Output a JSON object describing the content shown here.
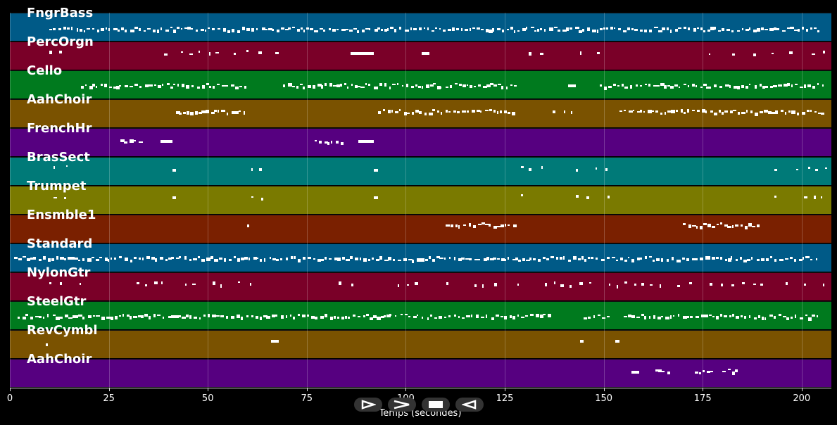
{
  "tracks": [
    {
      "name": "FngrBass",
      "color": "#005a87",
      "notes": [
        [
          10,
          204,
          "dense",
          0.6
        ]
      ]
    },
    {
      "name": "PercOrgn",
      "color": "#7a0028",
      "notes": [
        [
          10,
          15,
          "sparse",
          0.4
        ],
        [
          36,
          70,
          "sparse",
          0.4
        ],
        [
          86,
          92,
          "block",
          0.4
        ],
        [
          104,
          106,
          "block",
          0.4
        ],
        [
          128,
          136,
          "sparse",
          0.4
        ],
        [
          144,
          152,
          "sparse",
          0.4
        ],
        [
          170,
          206,
          "sparse",
          0.4
        ]
      ]
    },
    {
      "name": "Cello",
      "color": "#007a1e",
      "notes": [
        [
          18,
          60,
          "dense",
          0.55
        ],
        [
          69,
          128,
          "dense",
          0.55
        ],
        [
          141,
          143,
          "block",
          0.55
        ],
        [
          149,
          206,
          "dense",
          0.55
        ]
      ]
    },
    {
      "name": "AahChoir",
      "color": "#7a5200",
      "notes": [
        [
          42,
          60,
          "dense",
          0.45
        ],
        [
          93,
          128,
          "dense",
          0.45
        ],
        [
          137,
          143,
          "sparse",
          0.45
        ],
        [
          154,
          206,
          "dense",
          0.45
        ]
      ]
    },
    {
      "name": "FrenchHr",
      "color": "#560080",
      "notes": [
        [
          28,
          33,
          "dense",
          0.5
        ],
        [
          38,
          41,
          "block",
          0.45
        ],
        [
          77,
          84,
          "dense",
          0.5
        ],
        [
          88,
          92,
          "block",
          0.45
        ]
      ]
    },
    {
      "name": "BrasSect",
      "color": "#007a78",
      "notes": [
        [
          11,
          15,
          "sparse",
          0.4
        ],
        [
          41,
          42,
          "block",
          0.45
        ],
        [
          61,
          66,
          "sparse",
          0.4
        ],
        [
          92,
          93,
          "block",
          0.45
        ],
        [
          129,
          135,
          "sparse",
          0.4
        ],
        [
          143,
          151,
          "sparse",
          0.4
        ],
        [
          191,
          206,
          "sparse",
          0.4
        ]
      ]
    },
    {
      "name": "Trumpet",
      "color": "#7a7a00",
      "notes": [
        [
          11,
          15,
          "sparse",
          0.4
        ],
        [
          41,
          42,
          "block",
          0.4
        ],
        [
          61,
          66,
          "sparse",
          0.4
        ],
        [
          92,
          93,
          "block",
          0.4
        ],
        [
          129,
          135,
          "sparse",
          0.4
        ],
        [
          143,
          151,
          "sparse",
          0.4
        ],
        [
          191,
          206,
          "sparse",
          0.4
        ]
      ]
    },
    {
      "name": "Ensmble1",
      "color": "#7a2000",
      "notes": [
        [
          60,
          60.5,
          "block",
          0.38
        ],
        [
          110,
          128,
          "dense",
          0.38
        ],
        [
          170,
          189,
          "dense",
          0.38
        ]
      ]
    },
    {
      "name": "Standard",
      "color": "#005a87",
      "notes": [
        [
          1,
          204,
          "dense",
          0.55
        ]
      ]
    },
    {
      "name": "NylonGtr",
      "color": "#7a0028",
      "notes": [
        [
          10,
          19,
          "sparse",
          0.42
        ],
        [
          32,
          70,
          "sparse",
          0.42
        ],
        [
          83,
          91,
          "sparse",
          0.42
        ],
        [
          98,
          206,
          "sparse",
          0.42
        ]
      ]
    },
    {
      "name": "SteelGtr",
      "color": "#007a1e",
      "notes": [
        [
          2,
          136,
          "dense",
          0.55
        ],
        [
          145,
          152,
          "dense",
          0.55
        ],
        [
          155,
          204,
          "dense",
          0.55
        ]
      ]
    },
    {
      "name": "RevCymbl",
      "color": "#7a5200",
      "notes": [
        [
          9,
          9.3,
          "block",
          0.5
        ],
        [
          66,
          68,
          "block",
          0.38
        ],
        [
          144,
          145,
          "block",
          0.38
        ],
        [
          153,
          154,
          "block",
          0.38
        ]
      ]
    },
    {
      "name": "AahChoir",
      "color": "#560080",
      "notes": [
        [
          157,
          159,
          "block",
          0.45
        ],
        [
          163,
          166,
          "dense",
          0.45
        ],
        [
          173,
          177,
          "dense",
          0.45
        ],
        [
          180,
          184,
          "dense",
          0.45
        ]
      ]
    }
  ],
  "xaxis": {
    "label": "Temps (secondes)",
    "ticks": [
      "0",
      "25",
      "50",
      "75",
      "100",
      "125",
      "150",
      "175",
      "200"
    ],
    "tick_values": [
      0,
      25,
      50,
      75,
      100,
      125,
      150,
      175,
      200
    ],
    "range": [
      0,
      207.5
    ]
  },
  "controls": [
    {
      "name": "play-button",
      "icon": "play-outline-icon"
    },
    {
      "name": "fast-forward-button",
      "icon": "forward-chevron-icon"
    },
    {
      "name": "stop-button",
      "icon": "stop-icon"
    },
    {
      "name": "rewind-button",
      "icon": "rewind-icon"
    }
  ]
}
